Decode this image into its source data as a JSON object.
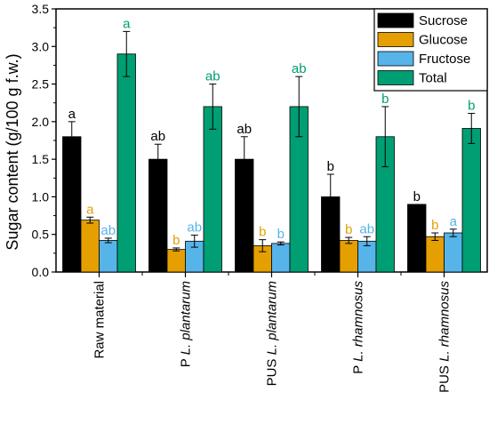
{
  "chart_data": {
    "type": "bar",
    "ylabel": "Sugar content (g/100 g f.w.)",
    "ylim": [
      0,
      3.5
    ],
    "yticks": [
      "0.0",
      "0.5",
      "1.0",
      "1.5",
      "2.0",
      "2.5",
      "3.0",
      "3.5"
    ],
    "ytick_values": [
      0,
      0.5,
      1.0,
      1.5,
      2.0,
      2.5,
      3.0,
      3.5
    ],
    "legend_position": "top-right",
    "grid": false,
    "categories": [
      {
        "prefix": "Raw material",
        "species": ""
      },
      {
        "prefix": "P ",
        "species": "L. plantarum"
      },
      {
        "prefix": "PUS ",
        "species": "L. plantarum"
      },
      {
        "prefix": "P ",
        "species": "L. rhamnosus"
      },
      {
        "prefix": "PUS ",
        "species": "L. rhamnosus"
      }
    ],
    "series": [
      {
        "name": "Sucrose",
        "color": "#000000",
        "label_color": "#000000",
        "values": [
          1.8,
          1.5,
          1.5,
          1.0,
          0.9
        ],
        "errors": [
          0.2,
          0.2,
          0.3,
          0.3,
          0
        ],
        "labels": [
          "a",
          "ab",
          "ab",
          "b",
          "b"
        ]
      },
      {
        "name": "Glucose",
        "color": "#E69F00",
        "label_color": "#E69F00",
        "values": [
          0.69,
          0.3,
          0.35,
          0.42,
          0.47
        ],
        "errors": [
          0.04,
          0.02,
          0.08,
          0.04,
          0.05
        ],
        "labels": [
          "a",
          "b",
          "b",
          "b",
          "b"
        ]
      },
      {
        "name": "Fructose",
        "color": "#56B4E9",
        "label_color": "#56B4E9",
        "values": [
          0.42,
          0.41,
          0.38,
          0.41,
          0.52
        ],
        "errors": [
          0.03,
          0.08,
          0.02,
          0.06,
          0.05
        ],
        "labels": [
          "ab",
          "ab",
          "b",
          "ab",
          "a"
        ]
      },
      {
        "name": "Total",
        "color": "#009E73",
        "label_color": "#009E73",
        "values": [
          2.9,
          2.2,
          2.2,
          1.8,
          1.91
        ],
        "errors": [
          0.3,
          0.3,
          0.4,
          0.4,
          0.2
        ],
        "labels": [
          "a",
          "ab",
          "ab",
          "b",
          "b"
        ]
      }
    ]
  }
}
